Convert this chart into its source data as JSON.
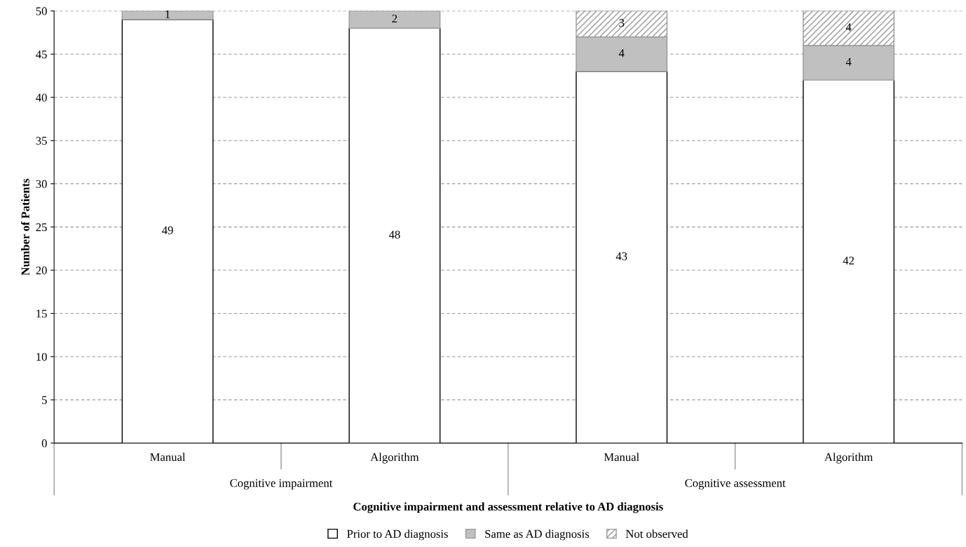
{
  "chart_data": {
    "type": "bar",
    "stacked": true,
    "xlabel": "Cognitive impairment and assessment relative to AD diagnosis",
    "ylabel": "Number of Patients",
    "categories": [
      "Manual",
      "Algorithm",
      "Manual",
      "Algorithm"
    ],
    "series": [
      {
        "name": "Prior to AD diagnosis",
        "color": "#ffffff",
        "values": [
          49,
          48,
          43,
          42
        ]
      },
      {
        "name": "Same as AD diagnosis",
        "color": "#c0c0c0",
        "values": [
          1,
          2,
          4,
          4
        ]
      },
      {
        "name": "Not observed",
        "color": "#999999",
        "values": [
          null,
          null,
          3,
          4
        ]
      }
    ],
    "ylim": [
      0,
      50
    ],
    "yticks": [
      0,
      5,
      10,
      15,
      20,
      25,
      30,
      35,
      40,
      45,
      50
    ],
    "grid": "y",
    "legend": "bottom",
    "data_labels": true,
    "annotations": [
      "Cognitive impairment",
      "Cognitive assessment"
    ]
  }
}
